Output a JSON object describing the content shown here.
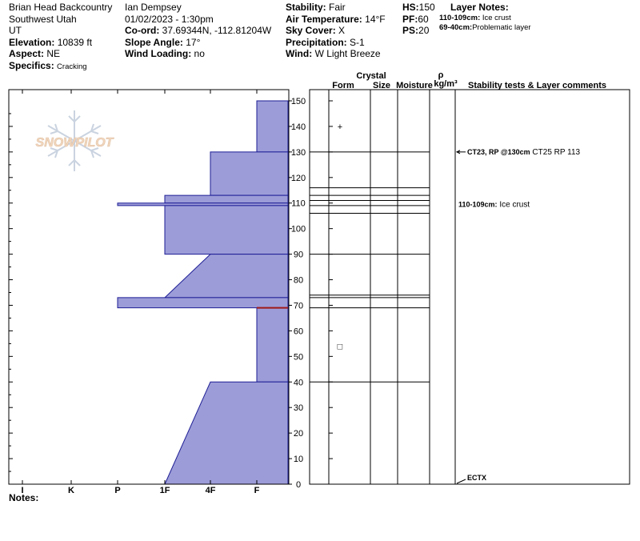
{
  "header": {
    "col1": {
      "location": "Brian Head Backcountry",
      "region": "Southwest Utah",
      "state": "UT",
      "elevation_label": "Elevation:",
      "elevation_value": "10839 ft",
      "aspect_label": "Aspect:",
      "aspect_value": "NE",
      "specifics_label": "Specifics:",
      "specifics_value": "Cracking"
    },
    "col2": {
      "observer": "Ian Dempsey",
      "datetime": "01/02/2023 - 1:30pm",
      "coord_label": "Co-ord:",
      "coord_value": "37.69344N, -112.81204W",
      "slope_label": "Slope Angle:",
      "slope_value": "17°",
      "wind_loading_label": "Wind Loading:",
      "wind_loading_value": "no"
    },
    "col3": {
      "stability_label": "Stability:",
      "stability_value": "Fair",
      "air_temp_label": "Air Temperature:",
      "air_temp_value": "14°F",
      "sky_label": "Sky Cover:",
      "sky_value": "X",
      "precip_label": "Precipitation:",
      "precip_value": "S-1",
      "wind_label": "Wind:",
      "wind_value": "W Light Breeze"
    },
    "col4": {
      "hs_label": "HS:",
      "hs_value": "150",
      "pf_label": "PF:",
      "pf_value": "60",
      "ps_label": "PS:",
      "ps_value": "20"
    },
    "layer_notes": {
      "title": "Layer Notes:",
      "notes": [
        {
          "range": "110-109cm:",
          "text": "Ice crust"
        },
        {
          "range": "69-40cm:",
          "text": "Problematic layer"
        }
      ]
    }
  },
  "watermark": {
    "text": "SNOWPILOT",
    "icon": "snowflake-icon"
  },
  "column_headers": {
    "form": "Form",
    "crystal": "Crystal",
    "size": "Size",
    "moisture": "Moisture",
    "rho": "ρ",
    "density_unit": "kg/m³",
    "stability": "Stability tests & Layer comments"
  },
  "notes_label": "Notes:",
  "chart_data": {
    "type": "area",
    "title": "",
    "x_axis": {
      "categories": [
        "I",
        "K",
        "P",
        "1F",
        "4F",
        "F"
      ],
      "reversed": true
    },
    "y_axis": {
      "label": "",
      "ylim": [
        0,
        150
      ],
      "ticks": [
        0,
        10,
        20,
        30,
        40,
        50,
        60,
        70,
        80,
        90,
        100,
        110,
        120,
        130,
        140,
        150
      ],
      "unit": "cm"
    },
    "hardness_profile": [
      {
        "top": 150,
        "bottom": 130,
        "hardness_top": "F",
        "hardness_bottom": "F"
      },
      {
        "top": 130,
        "bottom": 113,
        "hardness_top": "4F",
        "hardness_bottom": "4F"
      },
      {
        "top": 113,
        "bottom": 110,
        "hardness_top": "1F",
        "hardness_bottom": "1F"
      },
      {
        "top": 110,
        "bottom": 109,
        "hardness_top": "P",
        "hardness_bottom": "P"
      },
      {
        "top": 109,
        "bottom": 90,
        "hardness_top": "1F",
        "hardness_bottom": "1F"
      },
      {
        "top": 90,
        "bottom": 73,
        "hardness_top": "4F",
        "hardness_bottom": "1F"
      },
      {
        "top": 73,
        "bottom": 69,
        "hardness_top": "P",
        "hardness_bottom": "P"
      },
      {
        "top": 69,
        "bottom": 40,
        "hardness_top": "F",
        "hardness_bottom": "F"
      },
      {
        "top": 40,
        "bottom": 0,
        "hardness_top": "4F",
        "hardness_bottom": "1F"
      }
    ],
    "layer_boundaries": [
      130,
      116,
      113,
      111,
      109,
      106,
      90,
      74,
      73,
      69,
      40
    ],
    "grain_symbols": [
      {
        "height": 140,
        "symbol": "+"
      },
      {
        "height": 54,
        "symbol": "□"
      }
    ],
    "comments": [
      {
        "height": 130,
        "bold": "CT23, RP @130cm",
        "text": "CT25 RP 113",
        "arrow": true
      },
      {
        "height": 109.5,
        "bold": "110-109cm:",
        "text": "Ice crust",
        "arrow": false
      },
      {
        "height": 0,
        "bold": "ECTX",
        "text": "",
        "arrow": true
      }
    ],
    "highlight_line_height": 69,
    "colors": {
      "fill": "#9c9cd8",
      "edge": "#1e1e96",
      "highlight": "#a01818"
    }
  }
}
